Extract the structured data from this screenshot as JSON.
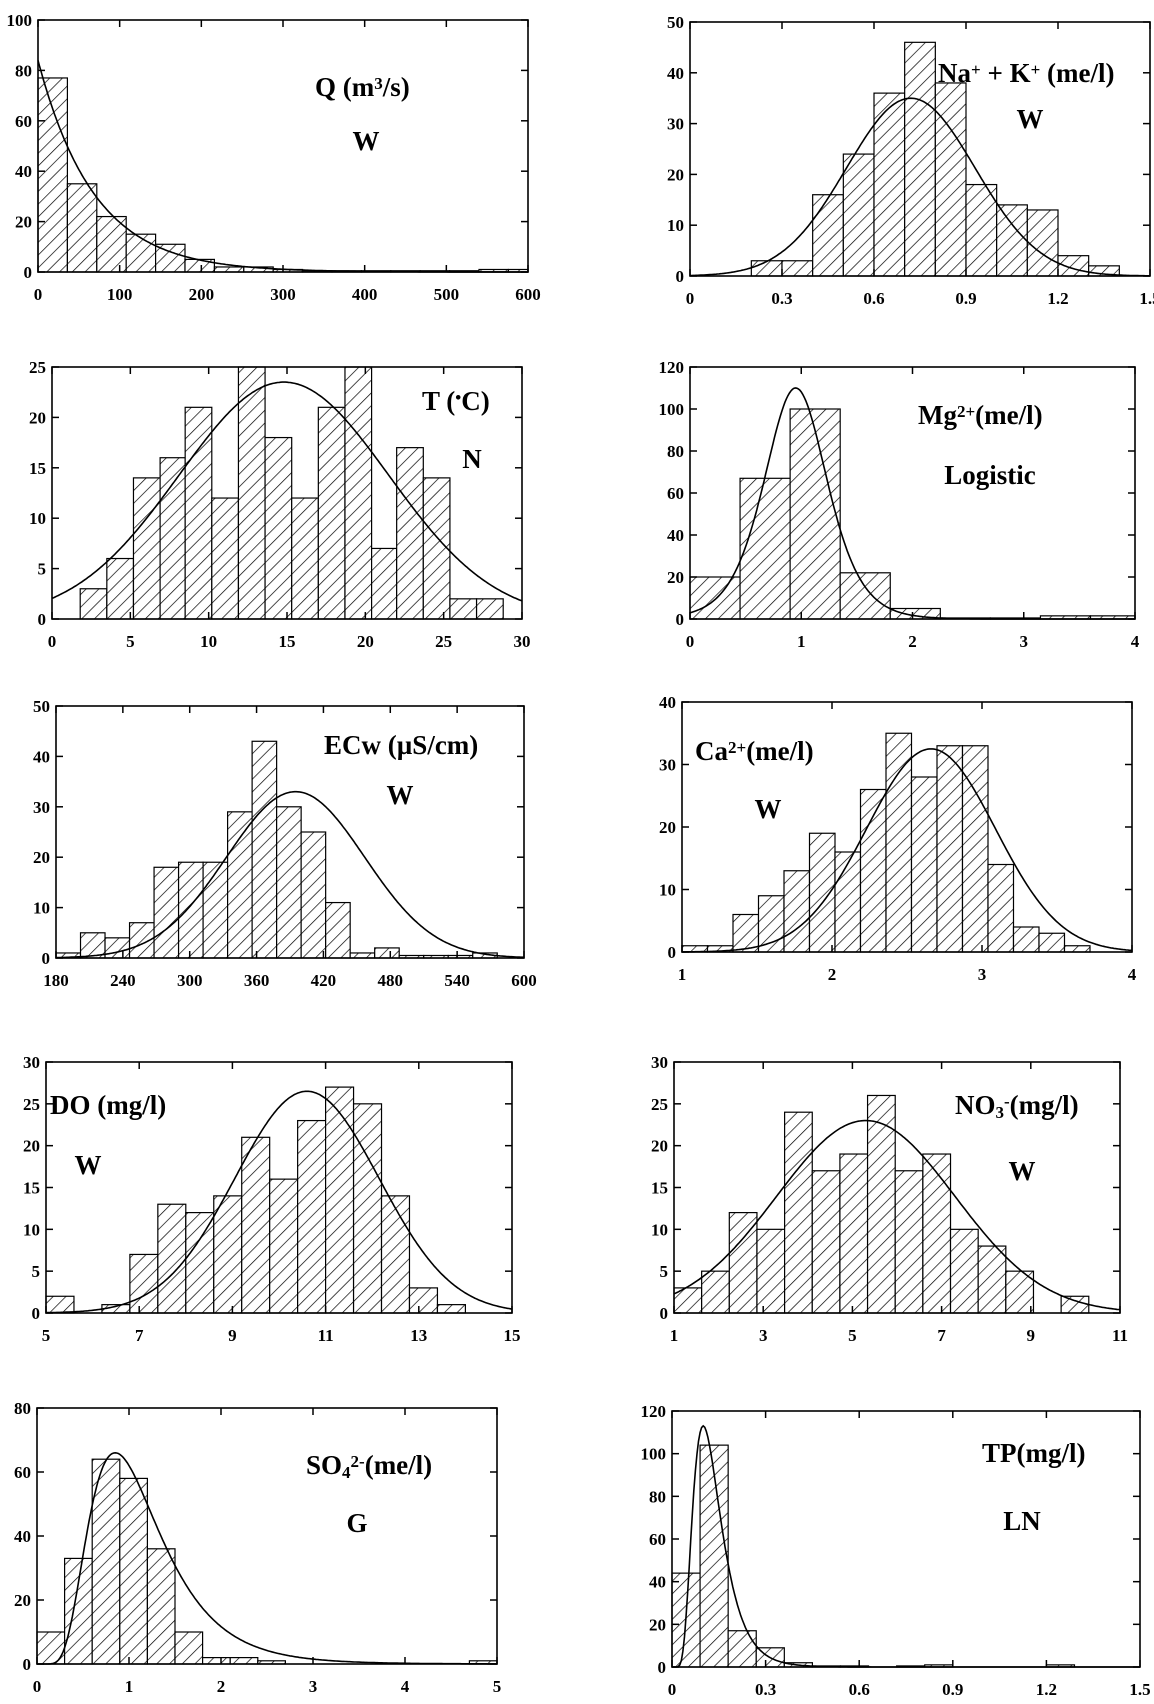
{
  "chart_data": [
    {
      "type": "bar",
      "title": "Q (m³/s)",
      "title_runs": [
        {
          "t": "Q (m"
        },
        {
          "t": "3",
          "sup": true
        },
        {
          "t": "/s)"
        }
      ],
      "distribution": "W",
      "xlim": [
        0,
        600
      ],
      "ylim": [
        0,
        100
      ],
      "xticks": [
        0,
        100,
        200,
        300,
        400,
        500,
        600
      ],
      "yticks": [
        0,
        20,
        40,
        60,
        80,
        100
      ],
      "bins": [
        [
          0,
          36,
          77
        ],
        [
          36,
          72,
          35
        ],
        [
          72,
          108,
          22
        ],
        [
          108,
          144,
          15
        ],
        [
          144,
          180,
          11
        ],
        [
          180,
          216,
          5
        ],
        [
          216,
          252,
          2
        ],
        [
          252,
          288,
          2
        ],
        [
          288,
          324,
          1
        ],
        [
          324,
          360,
          0.5
        ],
        [
          360,
          396,
          0.5
        ],
        [
          396,
          432,
          0.5
        ],
        [
          432,
          468,
          0.5
        ],
        [
          468,
          504,
          0.5
        ],
        [
          504,
          540,
          0.5
        ],
        [
          540,
          576,
          1
        ],
        [
          576,
          600,
          1
        ]
      ],
      "fit": {
        "kind": "exp",
        "a": 84,
        "b": 0.0145
      }
    },
    {
      "type": "bar",
      "title": "Na⁺ + K⁺ (me/l)",
      "title_runs": [
        {
          "t": "Na"
        },
        {
          "t": "+",
          "sup": true
        },
        {
          "t": " + K"
        },
        {
          "t": "+",
          "sup": true
        },
        {
          "t": " (me/l)"
        }
      ],
      "distribution": "W",
      "xlim": [
        0,
        1.5
      ],
      "ylim": [
        0,
        50
      ],
      "xticks": [
        0,
        0.3,
        0.6,
        0.9,
        1.2,
        1.5
      ],
      "yticks": [
        0,
        10,
        20,
        30,
        40,
        50
      ],
      "bins": [
        [
          0.2,
          0.3,
          3
        ],
        [
          0.3,
          0.4,
          3
        ],
        [
          0.4,
          0.5,
          16
        ],
        [
          0.5,
          0.6,
          24
        ],
        [
          0.6,
          0.7,
          36
        ],
        [
          0.7,
          0.8,
          46
        ],
        [
          0.8,
          0.9,
          38
        ],
        [
          0.9,
          1.0,
          18
        ],
        [
          1.0,
          1.1,
          14
        ],
        [
          1.1,
          1.2,
          13
        ],
        [
          1.2,
          1.3,
          4
        ],
        [
          1.3,
          1.4,
          2
        ]
      ],
      "fit": {
        "kind": "normal",
        "peak": 35,
        "mu": 0.72,
        "sigma": 0.21
      }
    },
    {
      "type": "bar",
      "title": "T (°C)",
      "title_runs": [
        {
          "t": "T ("
        },
        {
          "t": "•",
          "sup": true
        },
        {
          "t": "C)"
        }
      ],
      "distribution": "N",
      "xlim": [
        0,
        30
      ],
      "ylim": [
        0,
        25
      ],
      "xticks": [
        0,
        5,
        10,
        15,
        20,
        25,
        30
      ],
      "yticks": [
        0,
        5,
        10,
        15,
        20,
        25
      ],
      "bins": [
        [
          1.8,
          3.5,
          3
        ],
        [
          3.5,
          5.2,
          6
        ],
        [
          5.2,
          6.9,
          14
        ],
        [
          6.9,
          8.5,
          16
        ],
        [
          8.5,
          10.2,
          21
        ],
        [
          10.2,
          11.9,
          12
        ],
        [
          11.9,
          13.6,
          25
        ],
        [
          13.6,
          15.3,
          18
        ],
        [
          15.3,
          17.0,
          12
        ],
        [
          17.0,
          18.7,
          21
        ],
        [
          18.7,
          20.4,
          25
        ],
        [
          20.4,
          22.0,
          7
        ],
        [
          22.0,
          23.7,
          17
        ],
        [
          23.7,
          25.4,
          14
        ],
        [
          25.4,
          27.1,
          2
        ],
        [
          27.1,
          28.8,
          2
        ]
      ],
      "fit": {
        "kind": "normal",
        "peak": 23.5,
        "mu": 14.8,
        "sigma": 6.7
      }
    },
    {
      "type": "bar",
      "title": "Mg²⁺ (me/l)",
      "title_runs": [
        {
          "t": "Mg"
        },
        {
          "t": "2+",
          "sup": true
        },
        {
          "t": "(me/l)"
        }
      ],
      "distribution": "Logistic",
      "xlim": [
        0,
        4
      ],
      "ylim": [
        0,
        120
      ],
      "xticks": [
        0,
        1,
        2,
        3,
        4
      ],
      "yticks": [
        0,
        20,
        40,
        60,
        80,
        100,
        120
      ],
      "bins": [
        [
          0,
          0.45,
          20
        ],
        [
          0.45,
          0.9,
          67
        ],
        [
          0.9,
          1.35,
          100
        ],
        [
          1.35,
          1.8,
          22
        ],
        [
          1.8,
          2.25,
          5
        ],
        [
          2.25,
          2.7,
          0.5
        ],
        [
          2.7,
          3.15,
          0.5
        ],
        [
          3.15,
          3.6,
          1.5
        ],
        [
          3.6,
          4.0,
          1.5
        ]
      ],
      "fit": {
        "kind": "logistic",
        "peak": 110,
        "mu": 0.95,
        "s": 0.19
      }
    },
    {
      "type": "bar",
      "title": "ECw (µS/cm)",
      "title_runs": [
        {
          "t": "ECw (µS/cm)"
        }
      ],
      "distribution": "W",
      "xlim": [
        180,
        600
      ],
      "ylim": [
        0,
        50
      ],
      "xticks": [
        180,
        240,
        300,
        360,
        420,
        480,
        540,
        600
      ],
      "yticks": [
        0,
        10,
        20,
        30,
        40,
        50
      ],
      "bins": [
        [
          180,
          202,
          1
        ],
        [
          202,
          224,
          5
        ],
        [
          224,
          246,
          4
        ],
        [
          246,
          268,
          7
        ],
        [
          268,
          290,
          18
        ],
        [
          290,
          312,
          19
        ],
        [
          312,
          334,
          19
        ],
        [
          334,
          356,
          29
        ],
        [
          356,
          378,
          43
        ],
        [
          378,
          400,
          30
        ],
        [
          400,
          422,
          25
        ],
        [
          422,
          444,
          11
        ],
        [
          444,
          466,
          1
        ],
        [
          466,
          488,
          2
        ],
        [
          488,
          510,
          0.5
        ],
        [
          510,
          532,
          0.5
        ],
        [
          532,
          554,
          0.5
        ],
        [
          554,
          576,
          1
        ]
      ],
      "fit": {
        "kind": "normal",
        "peak": 33,
        "mu": 395,
        "sigma": 62
      }
    },
    {
      "type": "bar",
      "title": "Ca²⁺ (me/l)",
      "title_runs": [
        {
          "t": "Ca"
        },
        {
          "t": "2+",
          "sup": true
        },
        {
          "t": "(me/l)"
        }
      ],
      "distribution": "W",
      "xlim": [
        1,
        4
      ],
      "ylim": [
        0,
        40
      ],
      "xticks": [
        1,
        2,
        3,
        4
      ],
      "yticks": [
        0,
        10,
        20,
        30,
        40
      ],
      "bins": [
        [
          1.0,
          1.17,
          1
        ],
        [
          1.17,
          1.34,
          1
        ],
        [
          1.34,
          1.51,
          6
        ],
        [
          1.51,
          1.68,
          9
        ],
        [
          1.68,
          1.85,
          13
        ],
        [
          1.85,
          2.02,
          19
        ],
        [
          2.02,
          2.19,
          16
        ],
        [
          2.19,
          2.36,
          26
        ],
        [
          2.36,
          2.53,
          35
        ],
        [
          2.53,
          2.7,
          28
        ],
        [
          2.7,
          2.87,
          33
        ],
        [
          2.87,
          3.04,
          33
        ],
        [
          3.04,
          3.21,
          14
        ],
        [
          3.21,
          3.38,
          4
        ],
        [
          3.38,
          3.55,
          3
        ],
        [
          3.55,
          3.72,
          1
        ]
      ],
      "fit": {
        "kind": "normal",
        "peak": 32.5,
        "mu": 2.66,
        "sigma": 0.43
      }
    },
    {
      "type": "bar",
      "title": "DO (mg/l)",
      "title_runs": [
        {
          "t": "DO (mg/l)"
        }
      ],
      "distribution": "W",
      "xlim": [
        5,
        15
      ],
      "ylim": [
        0,
        30
      ],
      "xticks": [
        5,
        7,
        9,
        11,
        13,
        15
      ],
      "yticks": [
        0,
        5,
        10,
        15,
        20,
        25,
        30
      ],
      "bins": [
        [
          5.0,
          5.6,
          2
        ],
        [
          5.6,
          6.2,
          0
        ],
        [
          6.2,
          6.8,
          1
        ],
        [
          6.8,
          7.4,
          7
        ],
        [
          7.4,
          8.0,
          13
        ],
        [
          8.0,
          8.6,
          12
        ],
        [
          8.6,
          9.2,
          14
        ],
        [
          9.2,
          9.8,
          21
        ],
        [
          9.8,
          10.4,
          16
        ],
        [
          10.4,
          11.0,
          23
        ],
        [
          11.0,
          11.6,
          27
        ],
        [
          11.6,
          12.2,
          25
        ],
        [
          12.2,
          12.8,
          14
        ],
        [
          12.8,
          13.4,
          3
        ],
        [
          13.4,
          14.0,
          1
        ]
      ],
      "fit": {
        "kind": "normal",
        "peak": 26.5,
        "mu": 10.6,
        "sigma": 1.55
      }
    },
    {
      "type": "bar",
      "title": "NO₃⁻ (mg/l)",
      "title_runs": [
        {
          "t": "NO"
        },
        {
          "t": "3",
          "sub": true
        },
        {
          "t": "-",
          "sup": true
        },
        {
          "t": "(mg/l)"
        }
      ],
      "distribution": "W",
      "xlim": [
        1,
        11
      ],
      "ylim": [
        0,
        30
      ],
      "xticks": [
        1,
        3,
        5,
        7,
        9,
        11
      ],
      "yticks": [
        0,
        5,
        10,
        15,
        20,
        25,
        30
      ],
      "bins": [
        [
          1.0,
          1.62,
          3
        ],
        [
          1.62,
          2.24,
          5
        ],
        [
          2.24,
          2.86,
          12
        ],
        [
          2.86,
          3.48,
          10
        ],
        [
          3.48,
          4.1,
          24
        ],
        [
          4.1,
          4.72,
          17
        ],
        [
          4.72,
          5.34,
          19
        ],
        [
          5.34,
          5.96,
          26
        ],
        [
          5.96,
          6.58,
          17
        ],
        [
          6.58,
          7.2,
          19
        ],
        [
          7.2,
          7.82,
          10
        ],
        [
          7.82,
          8.44,
          8
        ],
        [
          8.44,
          9.06,
          5
        ],
        [
          9.06,
          9.68,
          0
        ],
        [
          9.68,
          10.3,
          2
        ]
      ],
      "fit": {
        "kind": "normal",
        "peak": 23,
        "mu": 5.3,
        "sigma": 2.0
      }
    },
    {
      "type": "bar",
      "title": "SO₄²⁻ (me/l)",
      "title_runs": [
        {
          "t": "SO"
        },
        {
          "t": "4",
          "sub": true
        },
        {
          "t": "2-",
          "sup": true
        },
        {
          "t": "(me/l)"
        }
      ],
      "distribution": "G",
      "xlim": [
        0,
        5
      ],
      "ylim": [
        0,
        80
      ],
      "xticks": [
        0,
        1,
        2,
        3,
        4,
        5
      ],
      "yticks": [
        0,
        20,
        40,
        60,
        80
      ],
      "bins": [
        [
          0,
          0.3,
          10
        ],
        [
          0.3,
          0.6,
          33
        ],
        [
          0.6,
          0.9,
          64
        ],
        [
          0.9,
          1.2,
          58
        ],
        [
          1.2,
          1.5,
          36
        ],
        [
          1.5,
          1.8,
          10
        ],
        [
          1.8,
          2.1,
          2
        ],
        [
          2.1,
          2.4,
          2
        ],
        [
          2.4,
          2.7,
          1
        ],
        [
          4.7,
          5.0,
          1
        ]
      ],
      "fit": {
        "kind": "lognormal",
        "peak": 66,
        "mode": 0.85,
        "sigma": 0.46
      }
    },
    {
      "type": "bar",
      "title": "TP(mg/l)",
      "title_runs": [
        {
          "t": "TP(mg/l)"
        }
      ],
      "distribution": "LN",
      "xlim": [
        0,
        1.5
      ],
      "ylim": [
        0,
        120
      ],
      "xticks": [
        0,
        0.3,
        0.6,
        0.9,
        1.2,
        1.5
      ],
      "yticks": [
        0,
        20,
        40,
        60,
        80,
        100,
        120
      ],
      "bins": [
        [
          0,
          0.09,
          44
        ],
        [
          0.09,
          0.18,
          104
        ],
        [
          0.18,
          0.27,
          17
        ],
        [
          0.27,
          0.36,
          9
        ],
        [
          0.36,
          0.45,
          2
        ],
        [
          0.45,
          0.54,
          0.5
        ],
        [
          0.54,
          0.63,
          0.5
        ],
        [
          0.72,
          0.81,
          0.5
        ],
        [
          0.81,
          0.9,
          1
        ],
        [
          1.2,
          1.29,
          1
        ]
      ],
      "fit": {
        "kind": "lognormal",
        "peak": 113,
        "mode": 0.1,
        "sigma": 0.45
      }
    }
  ]
}
